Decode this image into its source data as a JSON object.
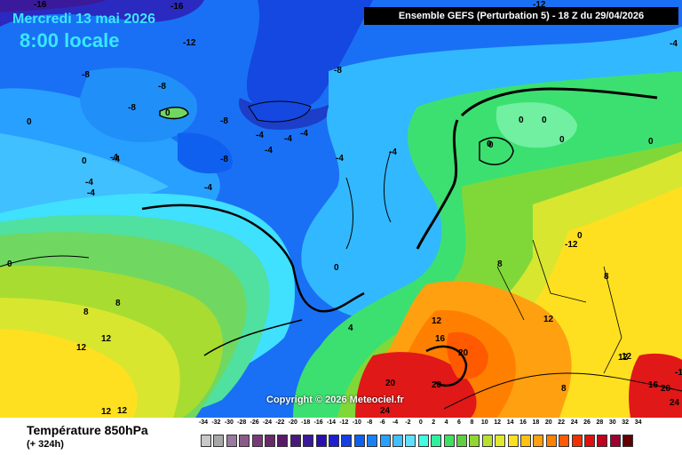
{
  "header": {
    "date": "Mercredi 13 mai 2026",
    "time": "8:00 locale",
    "banner": "Ensemble GEFS  (Perturbation 5)  -  18 Z du 29/04/2026"
  },
  "copyright": "Copyright © 2026 Meteociel.fr",
  "legend": {
    "title": "Température 850hPa",
    "subtitle": "(+ 324h)",
    "ticks": [
      "-34",
      "-32",
      "-30",
      "-28",
      "-26",
      "-24",
      "-22",
      "-20",
      "-18",
      "-16",
      "-14",
      "-12",
      "-10",
      "-8",
      "-6",
      "-4",
      "-2",
      "0",
      "2",
      "4",
      "6",
      "8",
      "10",
      "12",
      "14",
      "16",
      "18",
      "20",
      "22",
      "24",
      "26",
      "28",
      "30",
      "32",
      "34"
    ],
    "colors": [
      "#c8c8c8",
      "#a8a8a8",
      "#9a7aa0",
      "#8a5a8a",
      "#7a3a7a",
      "#6a2a6a",
      "#5a1a6a",
      "#4a1a7a",
      "#3a1a9a",
      "#2a10b0",
      "#1e20d0",
      "#1440e0",
      "#1060f0",
      "#1a80f8",
      "#28a0ff",
      "#40c0ff",
      "#60e0ff",
      "#40ffe0",
      "#30f0a0",
      "#40e060",
      "#60d040",
      "#90d830",
      "#b8e030",
      "#e0e830",
      "#ffe020",
      "#ffc010",
      "#ffa010",
      "#ff8000",
      "#ff5a00",
      "#f03000",
      "#e01010",
      "#c00020",
      "#a00030",
      "#600000"
    ]
  },
  "map_labels": [
    "-16",
    "-16",
    "-12",
    "-12",
    "-4",
    "-8",
    "-8",
    "-8",
    "-8",
    "0",
    "-8",
    "-4",
    "-4",
    "-4",
    "-4",
    "-4",
    "0",
    "0",
    "-4",
    "-4",
    "-4",
    "-8",
    "-4",
    "0",
    "0",
    "-4",
    "-4",
    "0",
    "0",
    "8",
    "8",
    "12",
    "12",
    "12",
    "4",
    "8",
    "-12",
    "-12",
    "0",
    "0",
    "0",
    "0",
    "0",
    "12",
    "12",
    "16",
    "20",
    "20",
    "20",
    "24",
    "12",
    "16",
    "20",
    "24",
    "8",
    "8",
    "12",
    "12"
  ]
}
